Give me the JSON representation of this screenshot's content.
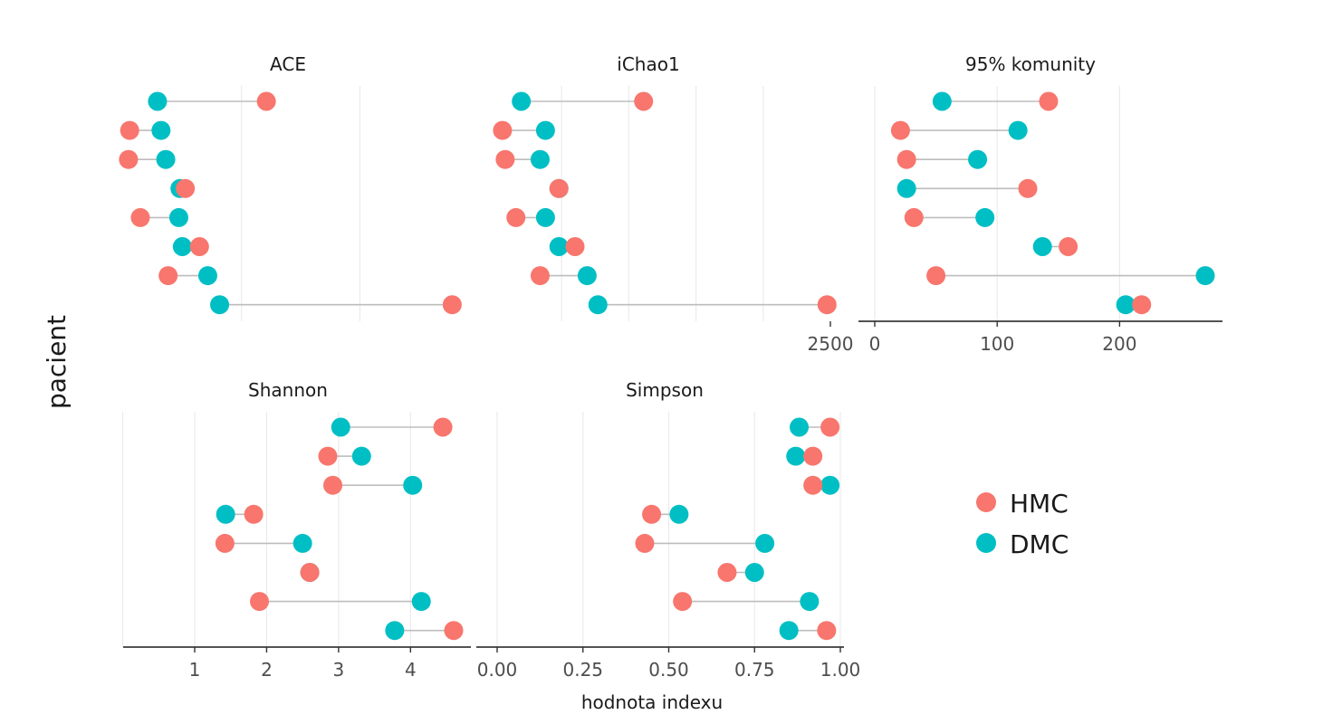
{
  "figure": {
    "ylabel": "pacient",
    "xlabel": "hodnota indexu"
  },
  "legend": {
    "placement": "right",
    "items": [
      {
        "label": "HMC",
        "color": "#F8766D"
      },
      {
        "label": "DMC",
        "color": "#00BFC4"
      }
    ]
  },
  "colors": {
    "HMC": "#F8766D",
    "DMC": "#00BFC4"
  },
  "chart_data": [
    {
      "type": "dumbbell",
      "title": "ACE",
      "xlim": [
        0,
        2800
      ],
      "grid_x": [
        1000,
        2000
      ],
      "ticks": [],
      "series": [
        {
          "name": "HMC",
          "values": [
            1210,
            55,
            45,
            525,
            145,
            645,
            380,
            2780
          ]
        },
        {
          "name": "DMC",
          "values": [
            290,
            320,
            360,
            480,
            470,
            500,
            715,
            815
          ]
        }
      ]
    },
    {
      "type": "dumbbell",
      "title": "iChao1",
      "xlim": [
        0,
        2500
      ],
      "grid_x": [
        500,
        1000,
        1500,
        2000
      ],
      "ticks": [
        {
          "value": 2500,
          "label": "2500"
        }
      ],
      "series": [
        {
          "name": "HMC",
          "values": [
            1110,
            60,
            80,
            480,
            160,
            600,
            340,
            2475
          ]
        },
        {
          "name": "DMC",
          "values": [
            200,
            380,
            340,
            480,
            380,
            480,
            690,
            770
          ]
        }
      ]
    },
    {
      "type": "dumbbell",
      "title": "95% komunity",
      "xlim": [
        0,
        270
      ],
      "grid_x": [
        0,
        100,
        200
      ],
      "ticks": [
        {
          "value": 0,
          "label": "0"
        },
        {
          "value": 100,
          "label": "100"
        },
        {
          "value": 200,
          "label": "200"
        }
      ],
      "series": [
        {
          "name": "HMC",
          "values": [
            142,
            21,
            26,
            125,
            32,
            158,
            50,
            218
          ]
        },
        {
          "name": "DMC",
          "values": [
            55,
            117,
            84,
            26,
            90,
            137,
            270,
            205
          ]
        }
      ]
    },
    {
      "type": "dumbbell",
      "title": "Shannon",
      "xlim": [
        1,
        4.6
      ],
      "grid_x": [
        0,
        1,
        2,
        3,
        4
      ],
      "ticks": [
        {
          "value": 1,
          "label": "1"
        },
        {
          "value": 2,
          "label": "2"
        },
        {
          "value": 3,
          "label": "3"
        },
        {
          "value": 4,
          "label": "4"
        }
      ],
      "series": [
        {
          "name": "HMC",
          "values": [
            4.45,
            2.85,
            2.92,
            1.82,
            1.42,
            2.6,
            1.9,
            4.6
          ]
        },
        {
          "name": "DMC",
          "values": [
            3.03,
            3.32,
            4.03,
            1.43,
            2.5,
            2.6,
            4.15,
            3.78
          ]
        }
      ]
    },
    {
      "type": "dumbbell",
      "title": "Simpson",
      "xlim": [
        0,
        1
      ],
      "grid_x": [
        0,
        0.25,
        0.5,
        0.75,
        1
      ],
      "ticks": [
        {
          "value": 0,
          "label": "0.00"
        },
        {
          "value": 0.25,
          "label": "0.25"
        },
        {
          "value": 0.5,
          "label": "0.50"
        },
        {
          "value": 0.75,
          "label": "0.75"
        },
        {
          "value": 1,
          "label": "1.00"
        }
      ],
      "series": [
        {
          "name": "HMC",
          "values": [
            0.97,
            0.92,
            0.92,
            0.45,
            0.43,
            0.67,
            0.54,
            0.96
          ]
        },
        {
          "name": "DMC",
          "values": [
            0.88,
            0.87,
            0.97,
            0.53,
            0.78,
            0.75,
            0.91,
            0.85
          ]
        }
      ]
    }
  ]
}
